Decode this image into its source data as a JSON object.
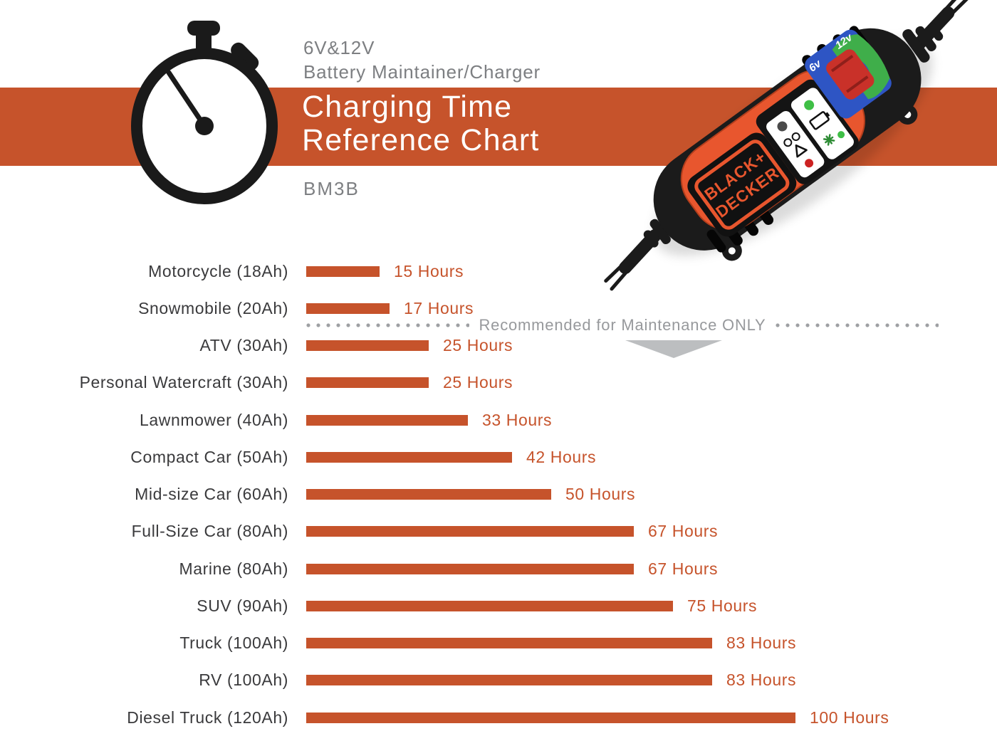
{
  "header": {
    "subtitle_line1": "6V&12V",
    "subtitle_line2": "Battery Maintainer/Charger",
    "title_line1": "Charging Time",
    "title_line2": "Reference Chart",
    "model": "BM3B"
  },
  "product": {
    "brand_line1": "BLACK+",
    "brand_line2": "DECKER",
    "voltage_left": "6v",
    "voltage_right": "12v"
  },
  "separator": {
    "label": "Recommended for Maintenance ONLY"
  },
  "chart_data": {
    "type": "bar",
    "orientation": "horizontal",
    "title": "Charging Time Reference Chart",
    "unit": "Hours",
    "xlim": [
      0,
      100
    ],
    "grid": false,
    "legend": false,
    "categories": [
      "Motorcycle (18Ah)",
      "Snowmobile (20Ah)",
      "ATV (30Ah)",
      "Personal Watercraft (30Ah)",
      "Lawnmower (40Ah)",
      "Compact Car (50Ah)",
      "Mid-size Car (60Ah)",
      "Full-Size Car (80Ah)",
      "Marine (80Ah)",
      "SUV (90Ah)",
      "Truck (100Ah)",
      "RV (100Ah)",
      "Diesel Truck (120Ah)"
    ],
    "values": [
      15,
      17,
      25,
      25,
      33,
      42,
      50,
      67,
      67,
      75,
      83,
      83,
      100
    ],
    "value_labels": [
      "15 Hours",
      "17 Hours",
      "25 Hours",
      "25 Hours",
      "33 Hours",
      "42 Hours",
      "50 Hours",
      "67 Hours",
      "67 Hours",
      "75 Hours",
      "83 Hours",
      "83 Hours",
      "100 Hours"
    ],
    "annotation": "Recommended for Maintenance ONLY",
    "annotation_between": [
      "Snowmobile (20Ah)",
      "ATV (30Ah)"
    ],
    "bar_color": "#C6532B",
    "label_color": "#3A3A3C",
    "value_color": "#C6532B"
  },
  "colors": {
    "band_orange": "#C6532B",
    "title_white": "#FFFFFF",
    "subtitle_gray": "#7D7F82",
    "annotation_gray": "#97999C",
    "triangle_gray": "#BCBEC0",
    "charger_orange": "#E8562E",
    "charger_black": "#1B1B1B",
    "panel_blue": "#2E55C4",
    "panel_green": "#3FAE4A",
    "switch_red": "#C93129",
    "led_green": "#3FBF46",
    "led_red": "#CC2222"
  }
}
